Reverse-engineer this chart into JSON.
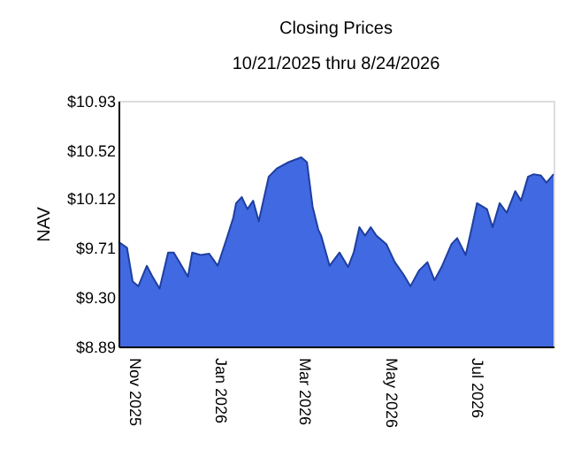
{
  "chart_data": {
    "type": "area",
    "title": "Closing Prices",
    "subtitle": "10/21/2025 thru 8/24/2026",
    "ylabel": "NAV",
    "x": [
      "2025-10-21",
      "2025-10-27",
      "2025-10-31",
      "2025-11-04",
      "2025-11-10",
      "2025-11-14",
      "2025-11-19",
      "2025-11-25",
      "2025-11-29",
      "2025-12-03",
      "2025-12-09",
      "2025-12-12",
      "2025-12-18",
      "2025-12-24",
      "2025-12-30",
      "2026-01-06",
      "2026-01-10",
      "2026-01-12",
      "2026-01-16",
      "2026-01-20",
      "2026-01-24",
      "2026-01-28",
      "2026-02-04",
      "2026-02-10",
      "2026-02-18",
      "2026-02-27",
      "2026-03-03",
      "2026-03-07",
      "2026-03-11",
      "2026-03-13",
      "2026-03-19",
      "2026-03-26",
      "2026-04-01",
      "2026-04-05",
      "2026-04-09",
      "2026-04-13",
      "2026-04-17",
      "2026-04-21",
      "2026-04-28",
      "2026-05-04",
      "2026-05-10",
      "2026-05-15",
      "2026-05-21",
      "2026-05-27",
      "2026-06-01",
      "2026-06-06",
      "2026-06-13",
      "2026-06-17",
      "2026-06-23",
      "2026-06-27",
      "2026-07-01",
      "2026-07-08",
      "2026-07-12",
      "2026-07-17",
      "2026-07-22",
      "2026-07-28",
      "2026-08-01",
      "2026-08-06",
      "2026-08-10",
      "2026-08-15",
      "2026-08-19",
      "2026-08-24"
    ],
    "series": [
      {
        "color": "#4169e1",
        "values": [
          9.76,
          9.71,
          9.43,
          9.39,
          9.56,
          9.47,
          9.37,
          9.67,
          9.67,
          9.59,
          9.47,
          9.67,
          9.65,
          9.66,
          9.56,
          9.81,
          9.96,
          10.08,
          10.13,
          10.03,
          10.1,
          9.93,
          10.3,
          10.37,
          10.42,
          10.46,
          10.42,
          10.05,
          9.86,
          9.81,
          9.56,
          9.67,
          9.55,
          9.67,
          9.88,
          9.81,
          9.88,
          9.81,
          9.74,
          9.59,
          9.49,
          9.39,
          9.52,
          9.59,
          9.44,
          9.55,
          9.74,
          9.79,
          9.65,
          9.86,
          10.08,
          10.03,
          9.88,
          10.08,
          10.0,
          10.18,
          10.1,
          10.3,
          10.32,
          10.31,
          10.25,
          10.32
        ]
      }
    ],
    "xlim": [
      "2025-10-21",
      "2026-08-24"
    ],
    "xticks": [
      {
        "value": "2025-11-01",
        "label": "Nov 2025"
      },
      {
        "value": "2026-01-01",
        "label": "Jan 2026"
      },
      {
        "value": "2026-03-01",
        "label": "Mar 2026"
      },
      {
        "value": "2026-05-01",
        "label": "May 2026"
      },
      {
        "value": "2026-07-01",
        "label": "Jul 2026"
      }
    ],
    "ylim": [
      8.89,
      10.93
    ],
    "yticks": [
      {
        "value": 8.89,
        "label": "$8.89"
      },
      {
        "value": 9.3,
        "label": "$9.30"
      },
      {
        "value": 9.71,
        "label": "$9.71"
      },
      {
        "value": 10.12,
        "label": "$10.12"
      },
      {
        "value": 10.52,
        "label": "$10.52"
      },
      {
        "value": 10.93,
        "label": "$10.93"
      }
    ],
    "grid": false
  }
}
